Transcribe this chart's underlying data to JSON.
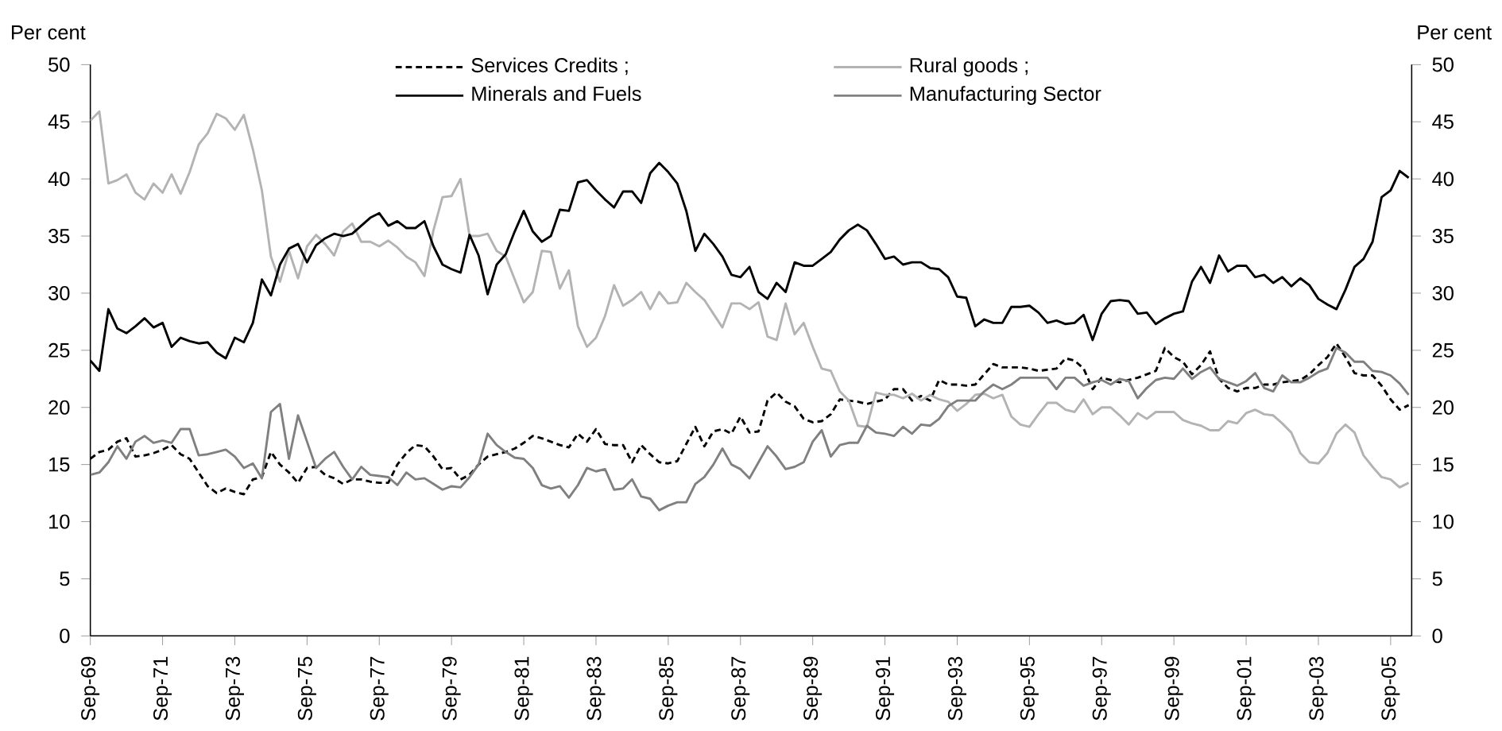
{
  "chart_data": {
    "type": "line",
    "ylabel": "Per cent",
    "y2label": "Per cent",
    "x": [
      "1969-09",
      "1969-12",
      "1970-03",
      "1970-06",
      "1970-09",
      "1970-12",
      "1971-03",
      "1971-06",
      "1971-09",
      "1971-12",
      "1972-03",
      "1972-06",
      "1972-09",
      "1972-12",
      "1973-03",
      "1973-06",
      "1973-09",
      "1973-12",
      "1974-03",
      "1974-06",
      "1974-09",
      "1974-12",
      "1975-03",
      "1975-06",
      "1975-09",
      "1975-12",
      "1976-03",
      "1976-06",
      "1976-09",
      "1976-12",
      "1977-03",
      "1977-06",
      "1977-09",
      "1977-12",
      "1978-03",
      "1978-06",
      "1978-09",
      "1978-12",
      "1979-03",
      "1979-06",
      "1979-09",
      "1979-12",
      "1980-03",
      "1980-06",
      "1980-09",
      "1980-12",
      "1981-03",
      "1981-06",
      "1981-09",
      "1981-12",
      "1982-03",
      "1982-06",
      "1982-09",
      "1982-12",
      "1983-03",
      "1983-06",
      "1983-09",
      "1983-12",
      "1984-03",
      "1984-06",
      "1984-09",
      "1984-12",
      "1985-03",
      "1985-06",
      "1985-09",
      "1985-12",
      "1986-03",
      "1986-06",
      "1986-09",
      "1986-12",
      "1987-03",
      "1987-06",
      "1987-09",
      "1987-12",
      "1988-03",
      "1988-06",
      "1988-09",
      "1988-12",
      "1989-03",
      "1989-06",
      "1989-09",
      "1989-12",
      "1990-03",
      "1990-06",
      "1990-09",
      "1990-12",
      "1991-03",
      "1991-06",
      "1991-09",
      "1991-12",
      "1992-03",
      "1992-06",
      "1992-09",
      "1992-12",
      "1993-03",
      "1993-06",
      "1993-09",
      "1993-12",
      "1994-03",
      "1994-06",
      "1994-09",
      "1994-12",
      "1995-03",
      "1995-06",
      "1995-09",
      "1995-12",
      "1996-03",
      "1996-06",
      "1996-09",
      "1996-12",
      "1997-03",
      "1997-06",
      "1997-09",
      "1997-12",
      "1998-03",
      "1998-06",
      "1998-09",
      "1998-12",
      "1999-03",
      "1999-06",
      "1999-09",
      "1999-12",
      "2000-03",
      "2000-06",
      "2000-09",
      "2000-12",
      "2001-03",
      "2001-06",
      "2001-09",
      "2001-12",
      "2002-03",
      "2002-06",
      "2002-09",
      "2002-12",
      "2003-03",
      "2003-06",
      "2003-09",
      "2003-12",
      "2004-03",
      "2004-06",
      "2004-09",
      "2004-12",
      "2005-03",
      "2005-06",
      "2005-09",
      "2005-12",
      "2006-03"
    ],
    "series": [
      {
        "name": "Services Credits ;",
        "color": "#000000",
        "line_style": "dashed",
        "values": [
          15.5,
          16.1,
          16.3,
          17.0,
          17.3,
          15.7,
          15.8,
          16.0,
          16.3,
          16.7,
          15.9,
          15.5,
          14.3,
          13.1,
          12.5,
          12.9,
          12.6,
          12.4,
          13.7,
          13.9,
          16.1,
          15.0,
          14.3,
          13.4,
          14.7,
          14.8,
          14.1,
          13.8,
          13.3,
          13.7,
          13.7,
          13.5,
          13.4,
          13.4,
          15.0,
          16.0,
          16.7,
          16.6,
          15.7,
          14.6,
          14.7,
          13.7,
          14.1,
          15.0,
          15.7,
          15.9,
          16.1,
          16.4,
          16.9,
          17.5,
          17.3,
          17.0,
          16.7,
          16.5,
          17.7,
          17.0,
          18.1,
          16.8,
          16.7,
          16.7,
          15.2,
          16.7,
          15.9,
          15.2,
          15.1,
          15.3,
          16.8,
          18.3,
          16.6,
          17.9,
          18.1,
          17.7,
          19.2,
          17.8,
          17.9,
          20.6,
          21.3,
          20.5,
          20.1,
          19.0,
          18.7,
          18.8,
          19.4,
          20.7,
          20.6,
          20.5,
          20.3,
          20.5,
          20.7,
          21.6,
          21.6,
          20.6,
          21.0,
          20.6,
          22.4,
          22.0,
          22.0,
          21.9,
          22.0,
          22.9,
          23.8,
          23.5,
          23.5,
          23.5,
          23.4,
          23.2,
          23.3,
          23.4,
          24.3,
          24.1,
          23.4,
          21.6,
          22.6,
          22.4,
          22.2,
          22.4,
          22.6,
          22.9,
          23.2,
          25.2,
          24.4,
          24.0,
          22.9,
          23.7,
          24.9,
          22.5,
          21.7,
          21.4,
          21.7,
          21.7,
          22.0,
          22.0,
          22.2,
          22.3,
          22.4,
          22.9,
          23.7,
          24.4,
          25.6,
          24.4,
          23.0,
          22.8,
          22.8,
          21.9,
          20.7,
          19.8,
          20.2
        ]
      },
      {
        "name": "Rural goods ;",
        "color": "#b3b3b3",
        "line_style": "solid",
        "values": [
          45.1,
          45.9,
          39.6,
          39.9,
          40.4,
          38.8,
          38.2,
          39.6,
          38.8,
          40.4,
          38.7,
          40.6,
          43.0,
          44.0,
          45.7,
          45.3,
          44.3,
          45.6,
          42.6,
          39.0,
          33.2,
          31.0,
          33.7,
          31.3,
          34.1,
          35.1,
          34.3,
          33.3,
          35.4,
          36.1,
          34.5,
          34.5,
          34.1,
          34.6,
          34.0,
          33.2,
          32.7,
          31.5,
          35.5,
          38.4,
          38.5,
          40.0,
          35.0,
          35.0,
          35.2,
          33.7,
          33.2,
          31.2,
          29.2,
          30.1,
          33.7,
          33.6,
          30.4,
          32.0,
          27.1,
          25.3,
          26.1,
          28.0,
          30.7,
          28.9,
          29.4,
          30.1,
          28.6,
          30.1,
          29.1,
          29.2,
          30.9,
          30.1,
          29.4,
          28.2,
          27.0,
          29.1,
          29.1,
          28.6,
          29.2,
          26.2,
          25.9,
          29.1,
          26.4,
          27.4,
          25.3,
          23.4,
          23.2,
          21.4,
          20.6,
          18.4,
          18.3,
          21.3,
          21.1,
          21.1,
          20.8,
          21.2,
          20.6,
          21.1,
          20.7,
          20.5,
          19.7,
          20.3,
          21.1,
          21.2,
          20.8,
          21.1,
          19.2,
          18.5,
          18.3,
          19.4,
          20.4,
          20.4,
          19.8,
          19.6,
          20.7,
          19.4,
          20.0,
          20.0,
          19.3,
          18.5,
          19.5,
          19.0,
          19.6,
          19.6,
          19.6,
          18.9,
          18.6,
          18.4,
          18.0,
          18.0,
          18.8,
          18.6,
          19.5,
          19.8,
          19.4,
          19.3,
          18.6,
          17.8,
          16.0,
          15.2,
          15.1,
          16.0,
          17.7,
          18.5,
          17.8,
          15.8,
          14.8,
          13.9,
          13.7,
          13.0,
          13.4
        ]
      },
      {
        "name": "Minerals and Fuels",
        "color": "#000000",
        "line_style": "solid",
        "values": [
          24.1,
          23.2,
          28.6,
          26.9,
          26.5,
          27.1,
          27.8,
          27.0,
          27.4,
          25.3,
          26.1,
          25.8,
          25.6,
          25.7,
          24.8,
          24.3,
          26.1,
          25.7,
          27.4,
          31.2,
          29.8,
          32.5,
          33.9,
          34.3,
          32.7,
          34.2,
          34.8,
          35.2,
          35.0,
          35.2,
          35.9,
          36.6,
          37.0,
          35.9,
          36.3,
          35.7,
          35.7,
          36.3,
          34.1,
          32.5,
          32.1,
          31.8,
          35.1,
          33.3,
          29.9,
          32.5,
          33.4,
          35.4,
          37.2,
          35.4,
          34.5,
          35.0,
          37.3,
          37.2,
          39.7,
          39.9,
          39.0,
          38.2,
          37.5,
          38.9,
          38.9,
          37.9,
          40.5,
          41.4,
          40.6,
          39.6,
          37.2,
          33.7,
          35.2,
          34.3,
          33.2,
          31.6,
          31.4,
          32.3,
          30.1,
          29.5,
          30.9,
          30.1,
          32.7,
          32.4,
          32.4,
          33.0,
          33.6,
          34.7,
          35.5,
          36.0,
          35.5,
          34.3,
          33.0,
          33.2,
          32.5,
          32.7,
          32.7,
          32.2,
          32.1,
          31.4,
          29.7,
          29.6,
          27.1,
          27.7,
          27.4,
          27.4,
          28.8,
          28.8,
          28.9,
          28.3,
          27.4,
          27.6,
          27.3,
          27.4,
          28.1,
          25.9,
          28.2,
          29.3,
          29.4,
          29.3,
          28.2,
          28.3,
          27.3,
          27.8,
          28.2,
          28.4,
          31.0,
          32.3,
          30.9,
          33.3,
          31.9,
          32.4,
          32.4,
          31.4,
          31.6,
          30.9,
          31.4,
          30.6,
          31.3,
          30.7,
          29.5,
          29.0,
          28.6,
          30.3,
          32.3,
          33.0,
          34.5,
          38.4,
          39.0,
          40.7,
          40.1
        ]
      },
      {
        "name": "Manufacturing Sector",
        "color": "#808080",
        "line_style": "solid",
        "values": [
          14.1,
          14.3,
          15.2,
          16.6,
          15.5,
          17.0,
          17.5,
          16.9,
          17.1,
          16.9,
          18.1,
          18.1,
          15.8,
          15.9,
          16.1,
          16.3,
          15.7,
          14.7,
          15.1,
          13.8,
          19.6,
          20.3,
          15.5,
          19.3,
          17.0,
          14.7,
          15.5,
          16.1,
          14.8,
          13.7,
          14.8,
          14.1,
          14.0,
          13.9,
          13.2,
          14.3,
          13.7,
          13.8,
          13.3,
          12.8,
          13.1,
          13.0,
          13.9,
          15.0,
          17.7,
          16.7,
          16.1,
          15.6,
          15.5,
          14.7,
          13.2,
          12.9,
          13.1,
          12.1,
          13.2,
          14.7,
          14.4,
          14.6,
          12.8,
          12.9,
          13.7,
          12.2,
          12.0,
          11.0,
          11.4,
          11.7,
          11.7,
          13.3,
          13.9,
          15.0,
          16.4,
          15.0,
          14.6,
          13.8,
          15.2,
          16.6,
          15.7,
          14.6,
          14.8,
          15.2,
          17.0,
          18.0,
          15.7,
          16.7,
          16.9,
          16.9,
          18.4,
          17.8,
          17.7,
          17.5,
          18.3,
          17.7,
          18.5,
          18.4,
          19.0,
          20.1,
          20.6,
          20.6,
          20.6,
          21.4,
          22.0,
          21.6,
          22.0,
          22.6,
          22.6,
          22.6,
          22.6,
          21.6,
          22.6,
          22.6,
          21.9,
          22.2,
          22.4,
          22.0,
          22.5,
          22.3,
          20.8,
          21.7,
          22.4,
          22.6,
          22.5,
          23.4,
          22.5,
          23.1,
          23.5,
          22.5,
          22.2,
          21.9,
          22.3,
          23.0,
          21.7,
          21.4,
          22.8,
          22.2,
          22.2,
          22.6,
          23.1,
          23.4,
          25.2,
          24.8,
          24.0,
          24.0,
          23.2,
          23.1,
          22.8,
          22.1,
          21.1
        ]
      }
    ],
    "xlim": [
      "1969-09",
      "2006-04"
    ],
    "xticks": [
      {
        "value": "1969-09",
        "label": "Sep-69"
      },
      {
        "value": "1971-09",
        "label": "Sep-71"
      },
      {
        "value": "1973-09",
        "label": "Sep-73"
      },
      {
        "value": "1975-09",
        "label": "Sep-75"
      },
      {
        "value": "1977-09",
        "label": "Sep-77"
      },
      {
        "value": "1979-09",
        "label": "Sep-79"
      },
      {
        "value": "1981-09",
        "label": "Sep-81"
      },
      {
        "value": "1983-09",
        "label": "Sep-83"
      },
      {
        "value": "1985-09",
        "label": "Sep-85"
      },
      {
        "value": "1987-09",
        "label": "Sep-87"
      },
      {
        "value": "1989-09",
        "label": "Sep-89"
      },
      {
        "value": "1991-09",
        "label": "Sep-91"
      },
      {
        "value": "1993-09",
        "label": "Sep-93"
      },
      {
        "value": "1995-09",
        "label": "Sep-95"
      },
      {
        "value": "1997-09",
        "label": "Sep-97"
      },
      {
        "value": "1999-09",
        "label": "Sep-99"
      },
      {
        "value": "2001-09",
        "label": "Sep-01"
      },
      {
        "value": "2003-09",
        "label": "Sep-03"
      },
      {
        "value": "2005-09",
        "label": "Sep-05"
      }
    ],
    "ylim": [
      0,
      50
    ],
    "yticks": [
      0,
      5,
      10,
      15,
      20,
      25,
      30,
      35,
      40,
      45,
      50
    ],
    "y2lim": [
      0,
      50
    ],
    "y2ticks": [
      0,
      5,
      10,
      15,
      20,
      25,
      30,
      35,
      40,
      45,
      50
    ],
    "grid": false,
    "legend": "top"
  }
}
